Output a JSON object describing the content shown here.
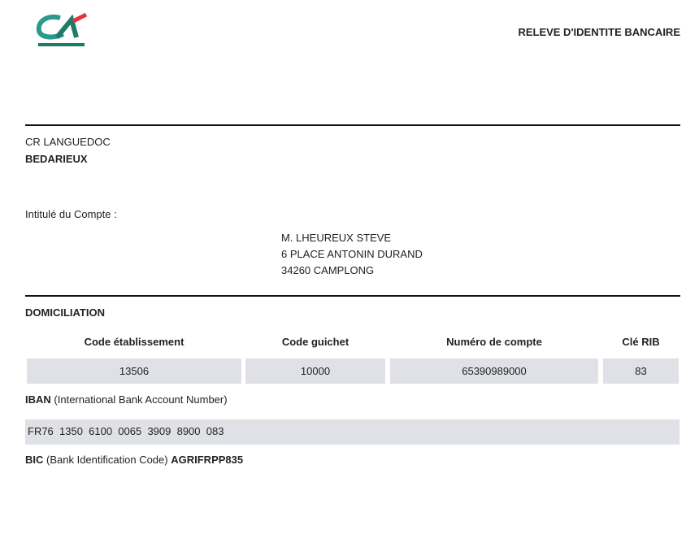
{
  "header": {
    "logo_text": "CA",
    "title": "RELEVE D'IDENTITE BANCAIRE"
  },
  "bank": {
    "name": "CR LANGUEDOC",
    "branch": "BEDARIEUX"
  },
  "account_holder": {
    "label": "Intitulé du Compte :",
    "name": "M. LHEUREUX STEVE",
    "address1": "6 PLACE ANTONIN DURAND",
    "address2": "34260 CAMPLONG"
  },
  "domiciliation": {
    "title": "DOMICILIATION",
    "columns": [
      "Code établissement",
      "Code guichet",
      "Numéro de compte",
      "Clé RIB"
    ],
    "values": [
      "13506",
      "10000",
      "65390989000",
      "83"
    ]
  },
  "iban": {
    "label": "IBAN",
    "description": "(International Bank Account Number)",
    "value": "FR76  1350  6100  0065  3909  8900  083"
  },
  "bic": {
    "label": "BIC",
    "description": "(Bank Identification Code)",
    "value": "AGRIFRPP835"
  },
  "colors": {
    "logo_green": "#1f7a68",
    "logo_red": "#e2333a",
    "cell_bg": "#dfe1e6"
  }
}
